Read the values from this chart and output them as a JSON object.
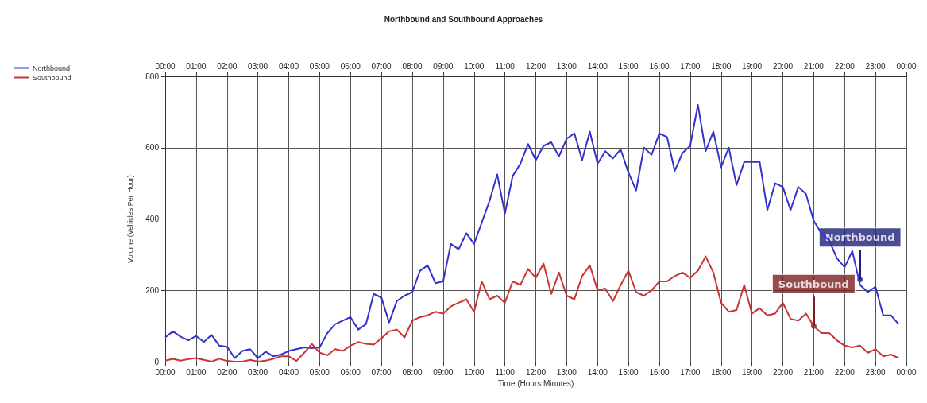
{
  "chart_data": {
    "type": "line",
    "title": "Northbound and Southbound Approaches",
    "xlabel": "Time (Hours:Minutes)",
    "ylabel": "Volume (Vehicles Per Hour)",
    "x": [
      0,
      0.25,
      0.5,
      0.75,
      1,
      1.25,
      1.5,
      1.75,
      2,
      2.25,
      2.5,
      2.75,
      3,
      3.25,
      3.5,
      3.75,
      4,
      4.25,
      4.5,
      4.75,
      5,
      5.25,
      5.5,
      5.75,
      6,
      6.25,
      6.5,
      6.75,
      7,
      7.25,
      7.5,
      7.75,
      8,
      8.25,
      8.5,
      8.75,
      9,
      9.25,
      9.5,
      9.75,
      10,
      10.25,
      10.5,
      10.75,
      11,
      11.25,
      11.5,
      11.75,
      12,
      12.25,
      12.5,
      12.75,
      13,
      13.25,
      13.5,
      13.75,
      14,
      14.25,
      14.5,
      14.75,
      15,
      15.25,
      15.5,
      15.75,
      16,
      16.25,
      16.5,
      16.75,
      17,
      17.25,
      17.5,
      17.75,
      18,
      18.25,
      18.5,
      18.75,
      19,
      19.25,
      19.5,
      19.75,
      20,
      20.25,
      20.5,
      20.75,
      21,
      21.25,
      21.5,
      21.75,
      22,
      22.25,
      22.5,
      22.75,
      23,
      23.25,
      23.5,
      23.75
    ],
    "series": [
      {
        "name": "Northbound",
        "color": "#3333cc",
        "values": [
          68,
          85,
          70,
          60,
          72,
          55,
          75,
          45,
          42,
          10,
          30,
          35,
          10,
          28,
          15,
          20,
          30,
          35,
          40,
          38,
          40,
          80,
          105,
          115,
          125,
          90,
          105,
          190,
          180,
          110,
          170,
          185,
          195,
          255,
          270,
          220,
          225,
          330,
          315,
          360,
          330,
          390,
          450,
          525,
          415,
          520,
          555,
          610,
          565,
          605,
          615,
          575,
          625,
          640,
          565,
          645,
          555,
          590,
          570,
          595,
          530,
          480,
          600,
          580,
          640,
          630,
          535,
          585,
          605,
          720,
          590,
          645,
          545,
          600,
          495,
          560,
          560,
          560,
          425,
          500,
          490,
          425,
          490,
          470,
          395,
          360,
          340,
          290,
          265,
          310,
          215,
          195,
          210,
          130,
          130,
          105
        ]
      },
      {
        "name": "Southbound",
        "color": "#cc3333",
        "values": [
          3,
          8,
          3,
          7,
          10,
          5,
          0,
          8,
          2,
          0,
          0,
          5,
          0,
          3,
          8,
          15,
          15,
          2,
          25,
          50,
          25,
          18,
          35,
          30,
          45,
          55,
          50,
          48,
          65,
          85,
          90,
          68,
          115,
          125,
          130,
          140,
          135,
          155,
          165,
          175,
          140,
          225,
          175,
          185,
          165,
          225,
          215,
          260,
          235,
          275,
          190,
          250,
          185,
          175,
          240,
          270,
          200,
          205,
          170,
          215,
          255,
          195,
          185,
          200,
          225,
          225,
          240,
          250,
          235,
          255,
          295,
          250,
          165,
          140,
          145,
          215,
          135,
          150,
          130,
          135,
          165,
          120,
          115,
          135,
          100,
          80,
          80,
          60,
          45,
          40,
          45,
          25,
          35,
          15,
          20,
          10
        ]
      }
    ],
    "annotations": [
      {
        "text": "Northbound",
        "x": 22.5,
        "y": 230
      },
      {
        "text": "Southbound",
        "x": 21,
        "y": 100
      }
    ],
    "xlim": [
      0,
      24
    ],
    "xticks": [
      {
        "value": 0,
        "label": "00:00"
      },
      {
        "value": 1,
        "label": "01:00"
      },
      {
        "value": 2,
        "label": "02:00"
      },
      {
        "value": 3,
        "label": "03:00"
      },
      {
        "value": 4,
        "label": "04:00"
      },
      {
        "value": 5,
        "label": "05:00"
      },
      {
        "value": 6,
        "label": "06:00"
      },
      {
        "value": 7,
        "label": "07:00"
      },
      {
        "value": 8,
        "label": "08:00"
      },
      {
        "value": 9,
        "label": "09:00"
      },
      {
        "value": 10,
        "label": "10:00"
      },
      {
        "value": 11,
        "label": "11:00"
      },
      {
        "value": 12,
        "label": "12:00"
      },
      {
        "value": 13,
        "label": "13:00"
      },
      {
        "value": 14,
        "label": "14:00"
      },
      {
        "value": 15,
        "label": "15:00"
      },
      {
        "value": 16,
        "label": "16:00"
      },
      {
        "value": 17,
        "label": "17:00"
      },
      {
        "value": 18,
        "label": "18:00"
      },
      {
        "value": 19,
        "label": "19:00"
      },
      {
        "value": 20,
        "label": "20:00"
      },
      {
        "value": 21,
        "label": "21:00"
      },
      {
        "value": 22,
        "label": "22:00"
      },
      {
        "value": 23,
        "label": "23:00"
      },
      {
        "value": 24,
        "label": "00:00"
      }
    ],
    "x2lim": [
      0,
      24
    ],
    "x2ticks": [
      {
        "value": 0,
        "label": "00:00"
      },
      {
        "value": 1,
        "label": "01:00"
      },
      {
        "value": 2,
        "label": "02:00"
      },
      {
        "value": 3,
        "label": "03:00"
      },
      {
        "value": 4,
        "label": "04:00"
      },
      {
        "value": 5,
        "label": "05:00"
      },
      {
        "value": 6,
        "label": "06:00"
      },
      {
        "value": 7,
        "label": "07:00"
      },
      {
        "value": 8,
        "label": "08:00"
      },
      {
        "value": 9,
        "label": "09:00"
      },
      {
        "value": 10,
        "label": "10:00"
      },
      {
        "value": 11,
        "label": "11:00"
      },
      {
        "value": 12,
        "label": "12:00"
      },
      {
        "value": 13,
        "label": "13:00"
      },
      {
        "value": 14,
        "label": "14:00"
      },
      {
        "value": 15,
        "label": "15:00"
      },
      {
        "value": 16,
        "label": "16:00"
      },
      {
        "value": 17,
        "label": "17:00"
      },
      {
        "value": 18,
        "label": "18:00"
      },
      {
        "value": 19,
        "label": "19:00"
      },
      {
        "value": 20,
        "label": "20:00"
      },
      {
        "value": 21,
        "label": "21:00"
      },
      {
        "value": 22,
        "label": "22:00"
      },
      {
        "value": 23,
        "label": "23:00"
      },
      {
        "value": 24,
        "label": "00:00"
      }
    ],
    "ylim": [
      0,
      800
    ],
    "yticks": [
      0,
      200,
      400,
      600,
      800
    ],
    "grid": true,
    "legend": "top left",
    "marker": "none",
    "line_style": "solid"
  }
}
